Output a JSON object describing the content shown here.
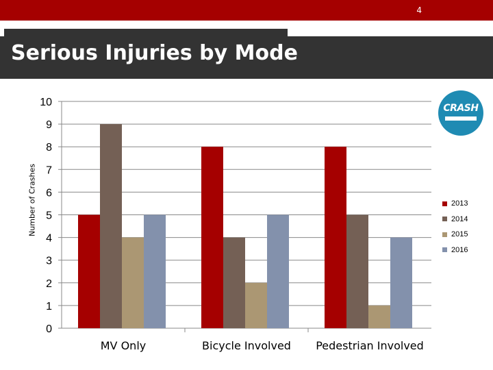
{
  "slide": {
    "number": "4",
    "title": "Serious Injuries by Mode"
  },
  "logo": {
    "text": "CRASH",
    "icon": "crash-logo"
  },
  "colors": {
    "top_bar": "#a50000",
    "title_band": "#333333",
    "logo": "#1f8bb3"
  },
  "chart_data": {
    "type": "bar",
    "categories": [
      "MV Only",
      "Bicycle Involved",
      "Pedestrian Involved"
    ],
    "series": [
      {
        "name": "2013",
        "values": [
          5,
          8,
          8
        ],
        "color": "#a50000"
      },
      {
        "name": "2014",
        "values": [
          9,
          4,
          5
        ],
        "color": "#746055"
      },
      {
        "name": "2015",
        "values": [
          4,
          2,
          1
        ],
        "color": "#ab9773"
      },
      {
        "name": "2016",
        "values": [
          5,
          5,
          4
        ],
        "color": "#8391ac"
      }
    ],
    "ylabel": "Number of Crashes",
    "ylim": [
      0,
      10
    ],
    "yticks": [
      "0",
      "1",
      "2",
      "3",
      "4",
      "5",
      "6",
      "7",
      "8",
      "9",
      "10"
    ],
    "grid": true,
    "legend": "right"
  }
}
